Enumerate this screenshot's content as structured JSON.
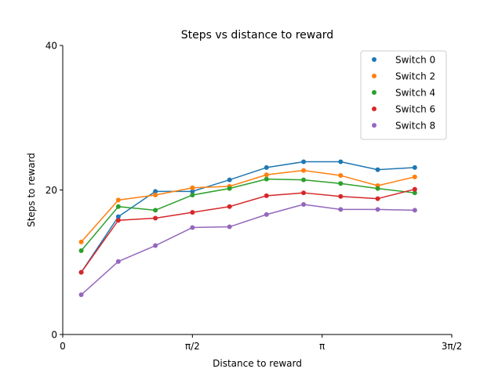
{
  "chart_data": {
    "type": "line",
    "title": "Steps vs distance to reward",
    "xlabel": "Distance to reward",
    "ylabel": "Steps to reward",
    "xlim": [
      0,
      4.712389
    ],
    "ylim": [
      0,
      40
    ],
    "x_ticks": [
      {
        "value": 0,
        "label": "0"
      },
      {
        "value": 1.570796,
        "label": "π/2"
      },
      {
        "value": 3.141593,
        "label": "π"
      },
      {
        "value": 4.712389,
        "label": "3π/2"
      }
    ],
    "y_ticks": [
      {
        "value": 0,
        "label": "0"
      },
      {
        "value": 20,
        "label": "20"
      },
      {
        "value": 40,
        "label": "40"
      }
    ],
    "grid": false,
    "legend_position": "top-right",
    "x": [
      0.224,
      0.673,
      1.122,
      1.571,
      2.02,
      2.468,
      2.917,
      3.366,
      3.815,
      4.264
    ],
    "series": [
      {
        "name": "Switch 0",
        "color": "#1f77b4",
        "values": [
          8.6,
          16.3,
          19.8,
          19.8,
          21.4,
          23.1,
          23.9,
          23.9,
          22.8,
          23.1
        ]
      },
      {
        "name": "Switch 2",
        "color": "#ff7f0e",
        "values": [
          12.8,
          18.6,
          19.3,
          20.3,
          20.5,
          22.1,
          22.7,
          22.0,
          20.6,
          21.8
        ]
      },
      {
        "name": "Switch 4",
        "color": "#2ca02c",
        "values": [
          11.6,
          17.7,
          17.2,
          19.3,
          20.2,
          21.5,
          21.4,
          20.9,
          20.2,
          19.6
        ]
      },
      {
        "name": "Switch 6",
        "color": "#d62728",
        "values": [
          8.6,
          15.8,
          16.1,
          16.9,
          17.7,
          19.2,
          19.6,
          19.1,
          18.8,
          20.1
        ]
      },
      {
        "name": "Switch 8",
        "color": "#9467bd",
        "values": [
          5.5,
          10.1,
          12.3,
          14.8,
          14.9,
          16.6,
          18.0,
          17.3,
          17.3,
          17.2
        ]
      }
    ]
  }
}
